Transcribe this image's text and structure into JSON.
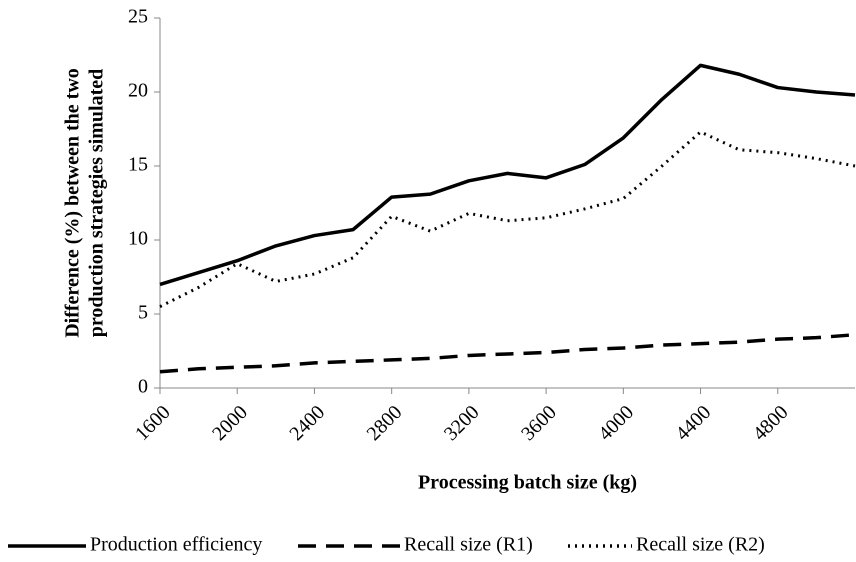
{
  "chart_data": {
    "type": "line",
    "xlabel": "Processing batch size (kg)",
    "ylabel": [
      "Difference (%) between the two",
      "production strategies  simulated"
    ],
    "x": [
      1600,
      1800,
      2000,
      2200,
      2400,
      2600,
      2800,
      3000,
      3200,
      3400,
      3600,
      3800,
      4000,
      4200,
      4400,
      4600,
      4800,
      5000,
      5200
    ],
    "series": [
      {
        "name": "Production efficiency",
        "color": "#000000",
        "line_style": "solid",
        "values": [
          7.0,
          7.8,
          8.6,
          9.6,
          10.3,
          10.7,
          12.9,
          13.1,
          14.0,
          14.5,
          14.2,
          15.1,
          16.9,
          19.5,
          21.8,
          21.2,
          20.3,
          20.0,
          19.8
        ]
      },
      {
        "name": "Recall size (R1)",
        "color": "#000000",
        "line_style": "dashed",
        "values": [
          1.1,
          1.3,
          1.4,
          1.5,
          1.7,
          1.8,
          1.9,
          2.0,
          2.2,
          2.3,
          2.4,
          2.6,
          2.7,
          2.9,
          3.0,
          3.1,
          3.3,
          3.4,
          3.6
        ]
      },
      {
        "name": "Recall size (R2)",
        "color": "#000000",
        "line_style": "dotted",
        "values": [
          5.5,
          6.8,
          8.4,
          7.2,
          7.7,
          8.8,
          11.6,
          10.6,
          11.8,
          11.3,
          11.5,
          12.1,
          12.8,
          15.0,
          17.3,
          16.1,
          15.9,
          15.5,
          15.0
        ]
      }
    ],
    "xlim": [
      1600,
      5200
    ],
    "xticks": [
      1600,
      2000,
      2400,
      2800,
      3200,
      3600,
      4000,
      4400,
      4800
    ],
    "ylim": [
      0,
      25
    ],
    "yticks": [
      0,
      5,
      10,
      15,
      20,
      25
    ],
    "grid": false,
    "legend": "bottom"
  }
}
